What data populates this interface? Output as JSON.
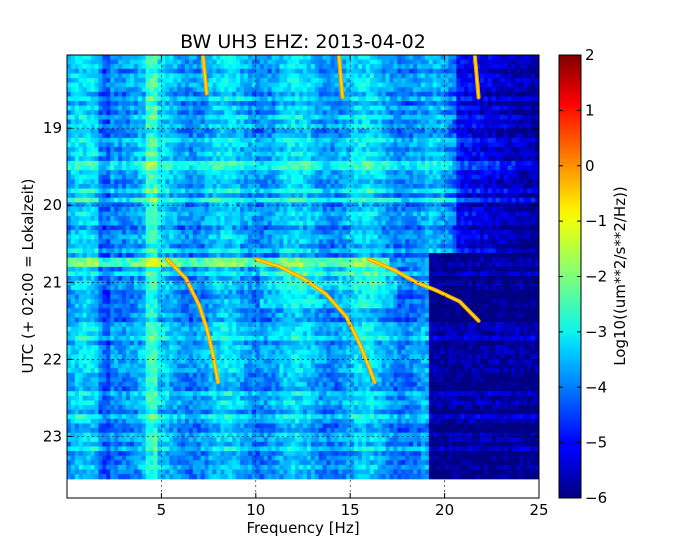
{
  "chart_data": {
    "type": "heatmap",
    "title": "BW UH3 EHZ: 2013-04-02",
    "xlabel": "Frequency [Hz]",
    "ylabel": "UTC (+ 02:00 = Lokalzeit)",
    "xlim": [
      0,
      25
    ],
    "ylim": [
      18.05,
      23.8
    ],
    "x_ticks": [
      5,
      10,
      15,
      20,
      25
    ],
    "x_tick_labels": [
      "5",
      "10",
      "15",
      "20",
      "25"
    ],
    "y_ticks": [
      19,
      20,
      21,
      22,
      23
    ],
    "y_tick_labels": [
      "19",
      "20",
      "21",
      "22",
      "23"
    ],
    "data_end_time": 23.55,
    "grid": true,
    "colorbar": {
      "label": "Log10((um**2/s**2/Hz))",
      "min": -6,
      "max": 2,
      "ticks": [
        2,
        1,
        0,
        -1,
        -2,
        -3,
        -4,
        -5,
        -6
      ],
      "tick_labels": [
        "2",
        "1",
        "0",
        "−1",
        "−2",
        "−3",
        "−4",
        "−5",
        "−6"
      ],
      "colormap": "jet"
    },
    "features": [
      {
        "points": [
          [
            14.4,
            18.05
          ],
          [
            14.5,
            18.35
          ],
          [
            14.6,
            18.6
          ]
        ]
      },
      {
        "points": [
          [
            7.2,
            18.05
          ],
          [
            7.3,
            18.3
          ],
          [
            7.4,
            18.55
          ]
        ]
      },
      {
        "points": [
          [
            21.6,
            18.05
          ],
          [
            21.8,
            18.6
          ]
        ]
      },
      {
        "points": [
          [
            5.3,
            20.7
          ],
          [
            6.3,
            20.95
          ],
          [
            7.0,
            21.3
          ],
          [
            7.4,
            21.6
          ],
          [
            7.7,
            21.9
          ],
          [
            8.0,
            22.3
          ]
        ]
      },
      {
        "points": [
          [
            10.0,
            20.7
          ],
          [
            11.3,
            20.8
          ],
          [
            12.5,
            20.95
          ],
          [
            13.7,
            21.15
          ],
          [
            14.8,
            21.45
          ],
          [
            15.5,
            21.8
          ],
          [
            16.0,
            22.1
          ],
          [
            16.3,
            22.3
          ]
        ]
      },
      {
        "points": [
          [
            16.0,
            20.7
          ],
          [
            17.4,
            20.85
          ],
          [
            18.5,
            21.0
          ],
          [
            19.5,
            21.1
          ],
          [
            20.8,
            21.25
          ],
          [
            21.8,
            21.5
          ]
        ]
      }
    ]
  }
}
